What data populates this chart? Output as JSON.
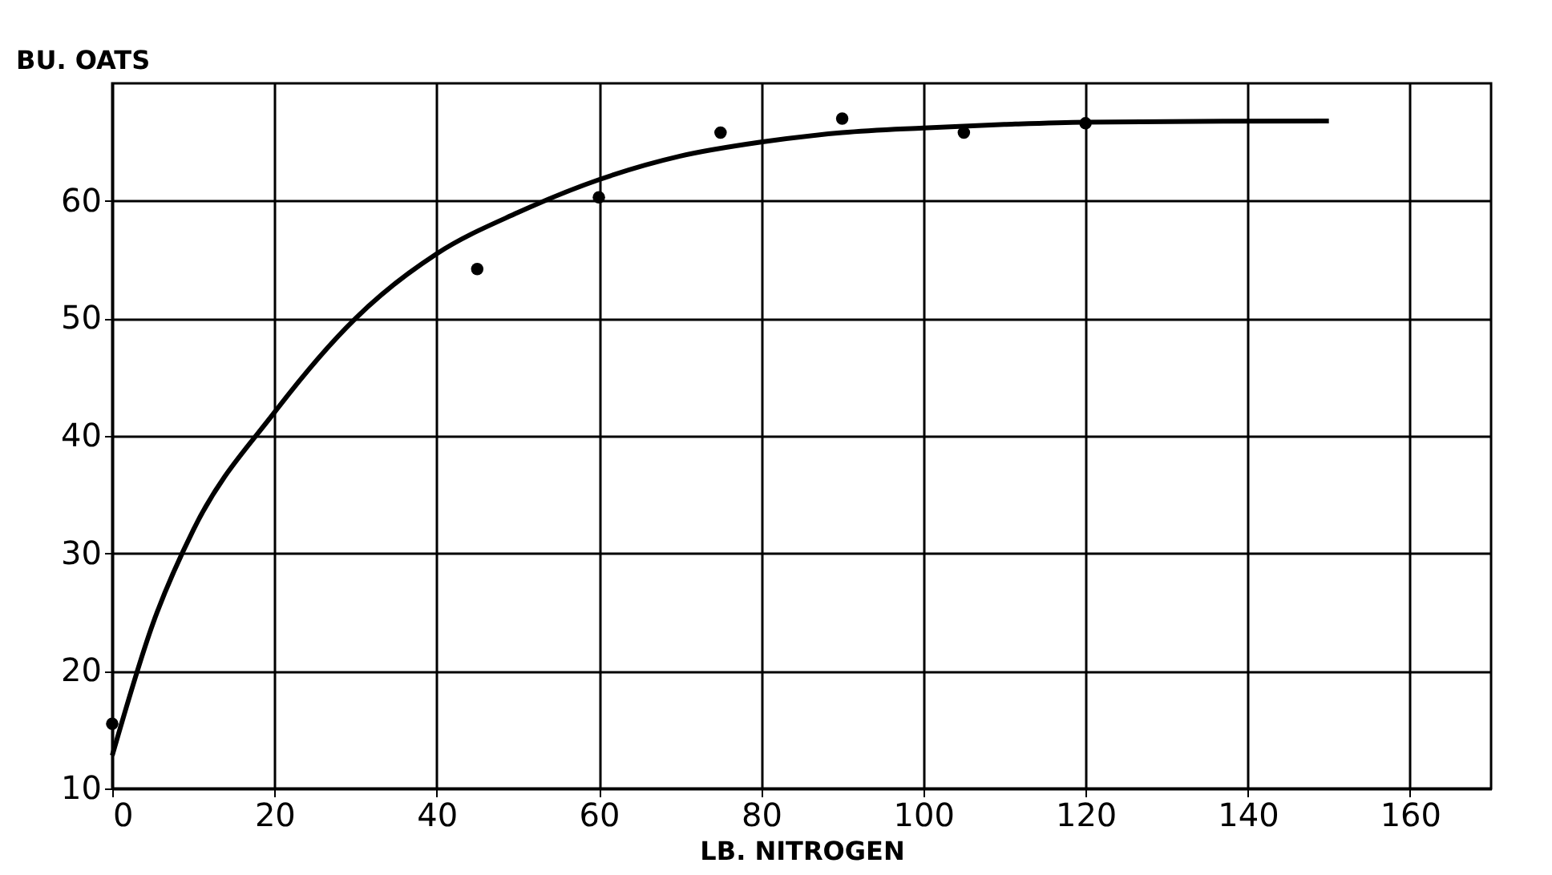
{
  "chart_data": {
    "type": "scatter",
    "xlabel": "LB. NITROGEN",
    "ylabel": "BU. OATS",
    "xlim": [
      0,
      170
    ],
    "xticks": [
      0,
      20,
      40,
      60,
      80,
      100,
      120,
      140,
      160
    ],
    "ylim": [
      10,
      70
    ],
    "yticks": [
      10,
      20,
      30,
      40,
      50,
      60
    ],
    "grid": true,
    "series": [
      {
        "color": "#000000",
        "marker": "circle",
        "x": [
          0,
          45,
          60,
          75,
          90,
          105,
          120
        ],
        "values": [
          15.5,
          54.2,
          60.3,
          65.8,
          67,
          65.8,
          66.6
        ]
      },
      {
        "type": "line",
        "color": "#000000",
        "marker": "none",
        "line_style": "solid",
        "x": [
          0,
          5,
          10,
          20,
          30,
          40,
          50,
          60,
          70,
          80,
          90,
          100,
          110,
          120,
          150
        ],
        "values": [
          12.8,
          24,
          32,
          42,
          50,
          55.5,
          59,
          61.8,
          63.8,
          65,
          65.8,
          66.2,
          66.5,
          66.7,
          66.8
        ]
      }
    ]
  }
}
